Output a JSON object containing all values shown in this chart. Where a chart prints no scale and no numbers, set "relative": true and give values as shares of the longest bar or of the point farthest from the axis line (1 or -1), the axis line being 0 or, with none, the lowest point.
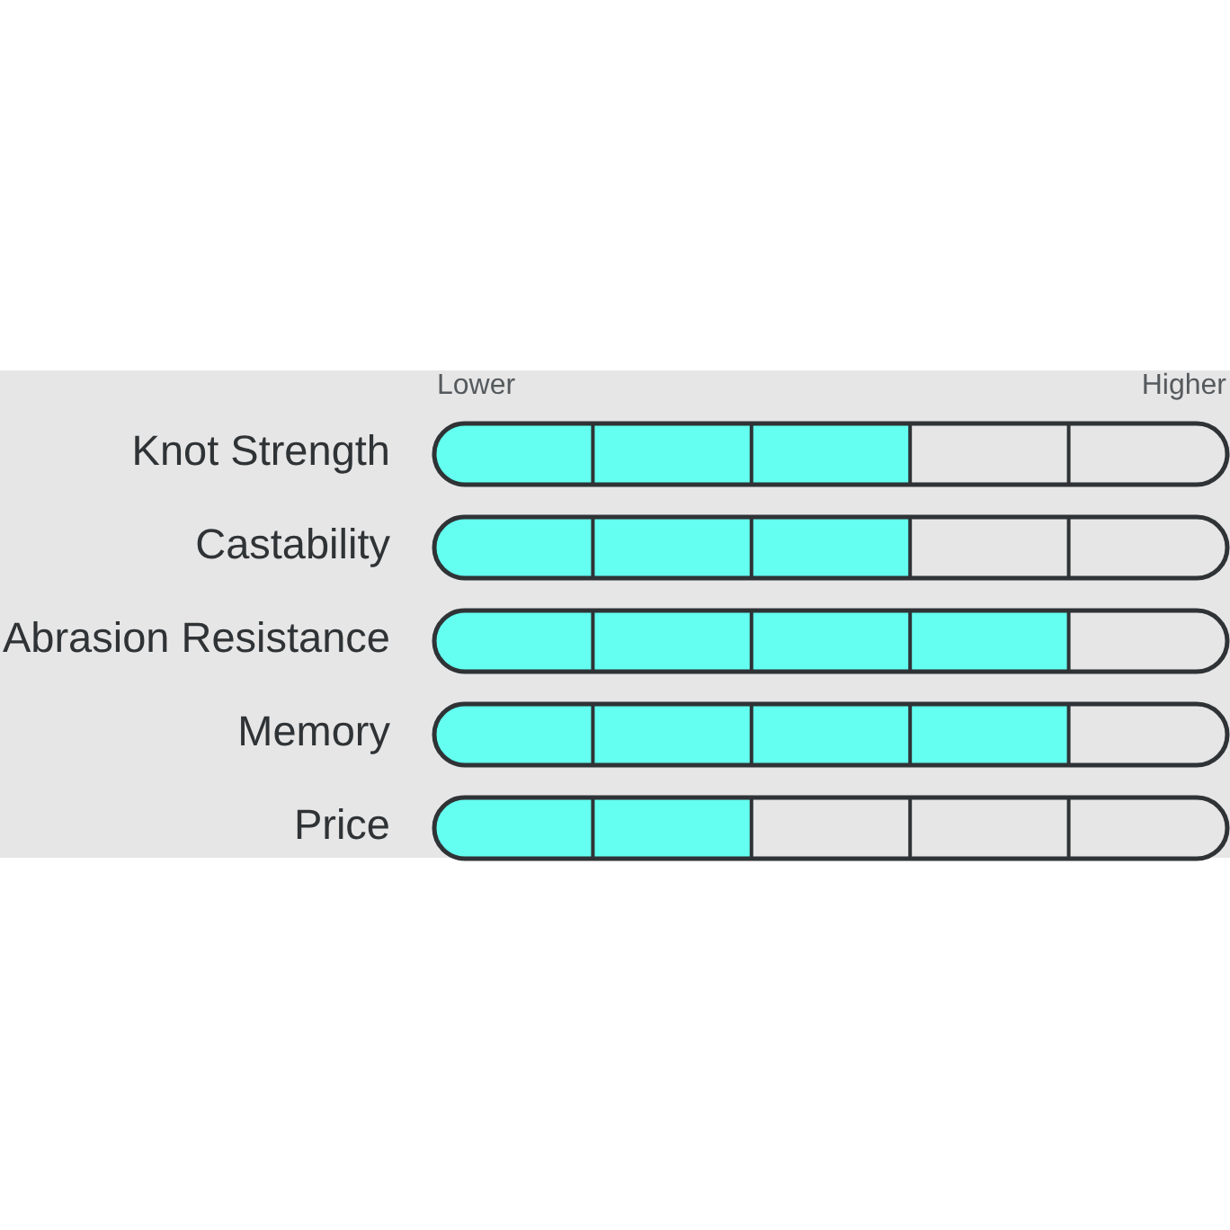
{
  "chart_data": {
    "type": "bar",
    "orientation": "horizontal",
    "relative": true,
    "categories": [
      "Knot Strength",
      "Castability",
      "Abrasion Resistance",
      "Memory",
      "Price"
    ],
    "values": [
      0.75,
      0.75,
      1,
      1,
      0.5
    ],
    "color": "#64fff0",
    "annotations": [
      "Lower",
      "Higher"
    ]
  }
}
